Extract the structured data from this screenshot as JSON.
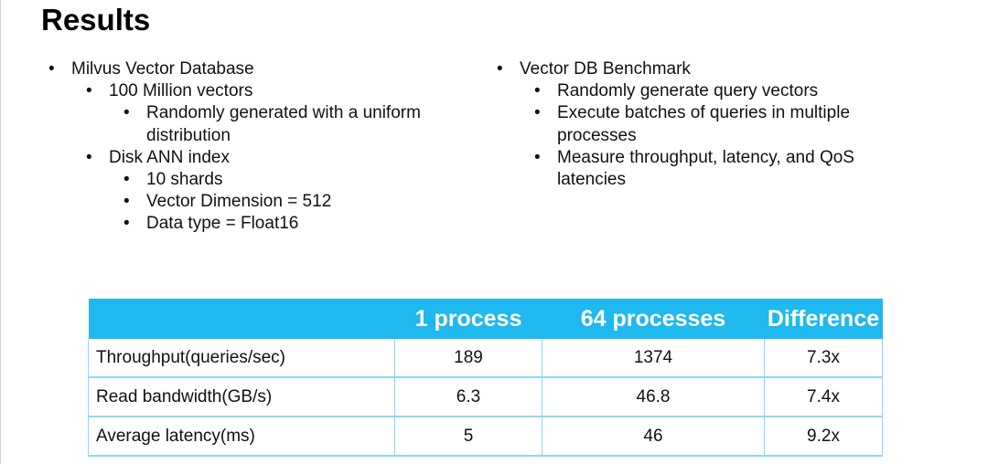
{
  "slide": {
    "title": "Results"
  },
  "left_bullets": [
    {
      "level": 0,
      "text": "Milvus Vector Database"
    },
    {
      "level": 1,
      "text": "100 Million vectors"
    },
    {
      "level": 2,
      "text": "Randomly generated with a uniform distribution"
    },
    {
      "level": 1,
      "text": "Disk ANN index"
    },
    {
      "level": 2,
      "text": "10 shards"
    },
    {
      "level": 2,
      "text": "Vector Dimension = 512"
    },
    {
      "level": 2,
      "text": "Data type = Float16"
    }
  ],
  "right_bullets": [
    {
      "level": 0,
      "text": "Vector DB Benchmark"
    },
    {
      "level": 1,
      "text": "Randomly generate query vectors"
    },
    {
      "level": 1,
      "text": "Execute batches of queries in multiple processes"
    },
    {
      "level": 1,
      "text": "Measure throughput, latency, and QoS latencies"
    }
  ],
  "bullet_glyph": "•",
  "table": {
    "header_color": "#1fb8ef",
    "headers": [
      "",
      "1 process",
      "64 processes",
      "Difference"
    ],
    "rows": [
      [
        "Throughput(queries/sec)",
        "189",
        "1374",
        "7.3x"
      ],
      [
        "Read bandwidth(GB/s)",
        "6.3",
        "46.8",
        "7.4x"
      ],
      [
        "Average latency(ms)",
        "5",
        "46",
        "9.2x"
      ]
    ]
  }
}
